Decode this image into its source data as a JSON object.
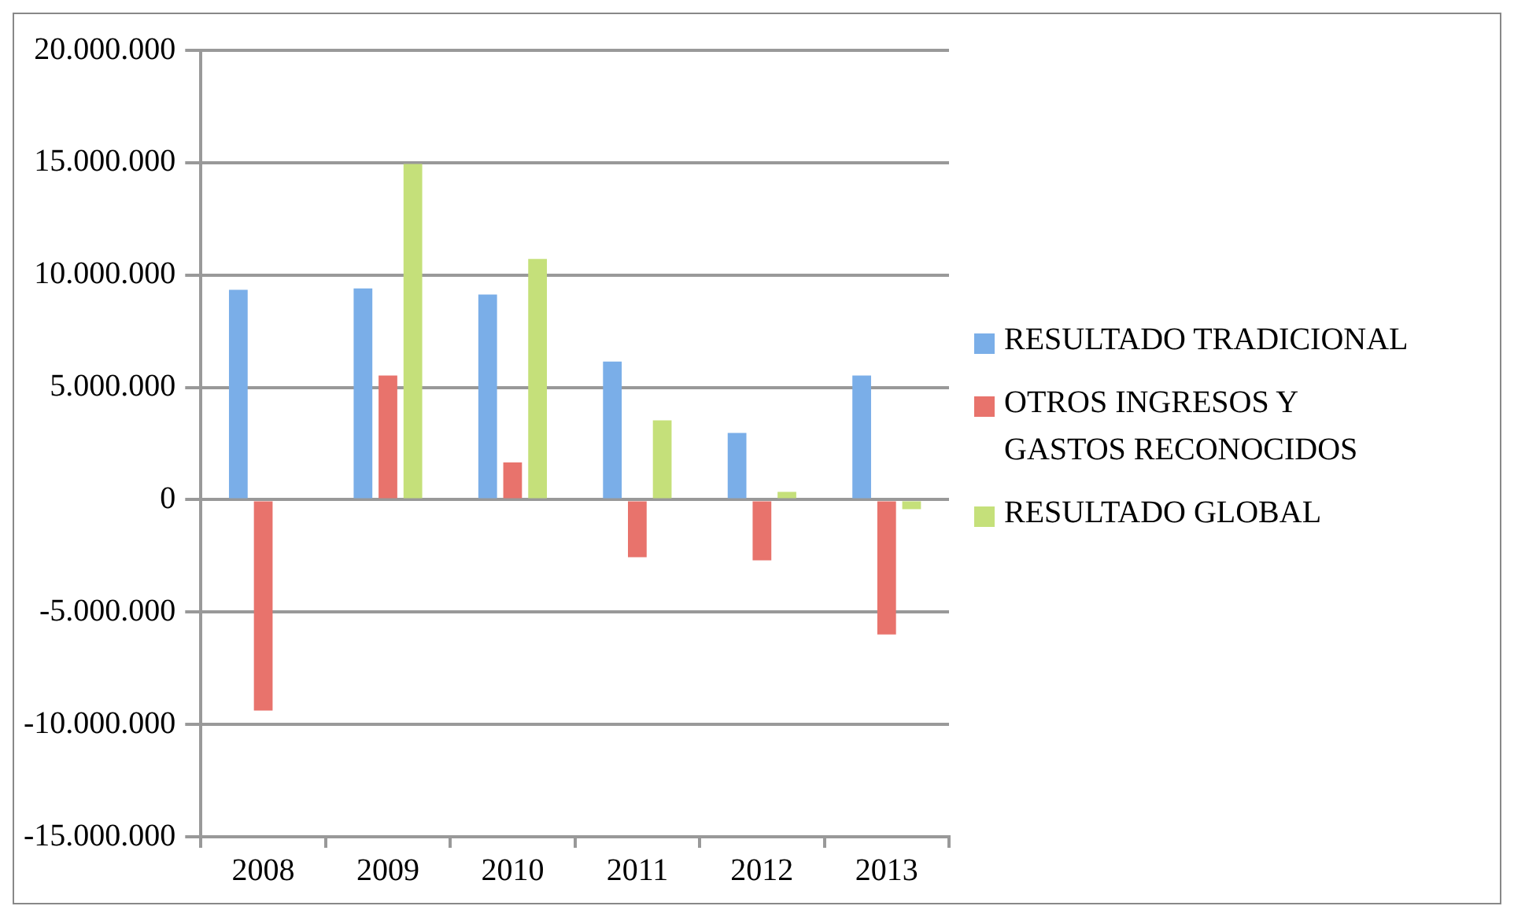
{
  "chart_data": {
    "type": "bar",
    "categories": [
      "2008",
      "2009",
      "2010",
      "2011",
      "2012",
      "2013"
    ],
    "series": [
      {
        "name": "RESULTADO TRADICIONAL",
        "color": "#7aaee8",
        "values": [
          9340000,
          9400000,
          9130000,
          6150000,
          2970000,
          5530000
        ]
      },
      {
        "name": "OTROS INGRESOS Y GASTOS RECONOCIDOS",
        "color": "#e8736c",
        "values": [
          -9380000,
          5530000,
          1660000,
          -2560000,
          -2700000,
          -6000000
        ]
      },
      {
        "name": "RESULTADO GLOBAL",
        "color": "#c5e07a",
        "values": [
          0,
          14940000,
          10720000,
          3530000,
          350000,
          -420000
        ]
      }
    ],
    "ylim": [
      -15000000,
      20000000
    ],
    "yticks": [
      {
        "value": -15000000,
        "label": "-15.000.000"
      },
      {
        "value": -10000000,
        "label": "-10.000.000"
      },
      {
        "value": -5000000,
        "label": "-5.000.000"
      },
      {
        "value": 0,
        "label": "0"
      },
      {
        "value": 5000000,
        "label": "5.000.000"
      },
      {
        "value": 10000000,
        "label": "10.000.000"
      },
      {
        "value": 15000000,
        "label": "15.000.000"
      },
      {
        "value": 20000000,
        "label": "20.000.000"
      }
    ],
    "grid": "y",
    "legend": "right"
  }
}
